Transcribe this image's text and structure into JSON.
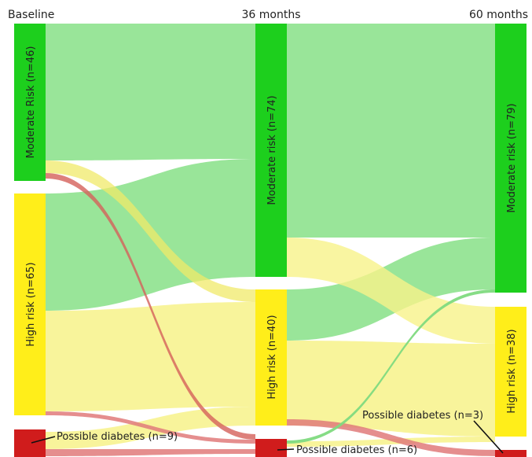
{
  "columns": [
    {
      "id": "baseline",
      "title": "Baseline"
    },
    {
      "id": "m36",
      "title": "36 months"
    },
    {
      "id": "m60",
      "title": "60 months"
    }
  ],
  "nodes": {
    "b_mod": {
      "label": "Moderate Risk (n=46)",
      "color": "#1dcf1d"
    },
    "b_high": {
      "label": "High risk (n=65)",
      "color": "#ffee1a"
    },
    "b_pd": {
      "label": "Possible diabetes (n=9)",
      "color": "#d01c1c"
    },
    "m36_mod": {
      "label": "Moderate risk (n=74)",
      "color": "#1dcf1d"
    },
    "m36_high": {
      "label": "High risk (n=40)",
      "color": "#ffee1a"
    },
    "m36_pd": {
      "label": "Possible diabetes (n=6)",
      "color": "#d01c1c"
    },
    "m60_mod": {
      "label": "Moderate risk (n=79)",
      "color": "#1dcf1d"
    },
    "m60_high": {
      "label": "High risk (n=38)",
      "color": "#ffee1a"
    },
    "m60_pd": {
      "label": "Possible diabetes (n=3)",
      "color": "#d01c1c"
    }
  },
  "flows": [
    {
      "from": "b_mod",
      "to": "m36_mod",
      "color": "#8ee28e"
    },
    {
      "from": "b_mod",
      "to": "m36_high",
      "color": "#f7f28a"
    },
    {
      "from": "b_mod",
      "to": "m36_pd",
      "color": "#e07a7a"
    },
    {
      "from": "b_high",
      "to": "m36_mod",
      "color": "#8ee28e"
    },
    {
      "from": "b_high",
      "to": "m36_high",
      "color": "#f7f28a"
    },
    {
      "from": "b_high",
      "to": "m36_pd",
      "color": "#e07a7a"
    },
    {
      "from": "b_pd",
      "to": "m36_high",
      "color": "#f7f28a"
    },
    {
      "from": "b_pd",
      "to": "m36_pd",
      "color": "#e07a7a"
    },
    {
      "from": "m36_mod",
      "to": "m60_mod",
      "color": "#8ee28e"
    },
    {
      "from": "m36_mod",
      "to": "m60_high",
      "color": "#f7f28a"
    },
    {
      "from": "m36_high",
      "to": "m60_mod",
      "color": "#8ee28e"
    },
    {
      "from": "m36_high",
      "to": "m60_high",
      "color": "#f7f28a"
    },
    {
      "from": "m36_pd",
      "to": "m60_mod",
      "color": "#8ee28e"
    },
    {
      "from": "m36_pd",
      "to": "m60_high",
      "color": "#f7f28a"
    },
    {
      "from": "m36_pd",
      "to": "m60_pd",
      "color": "#e07a7a"
    }
  ]
}
